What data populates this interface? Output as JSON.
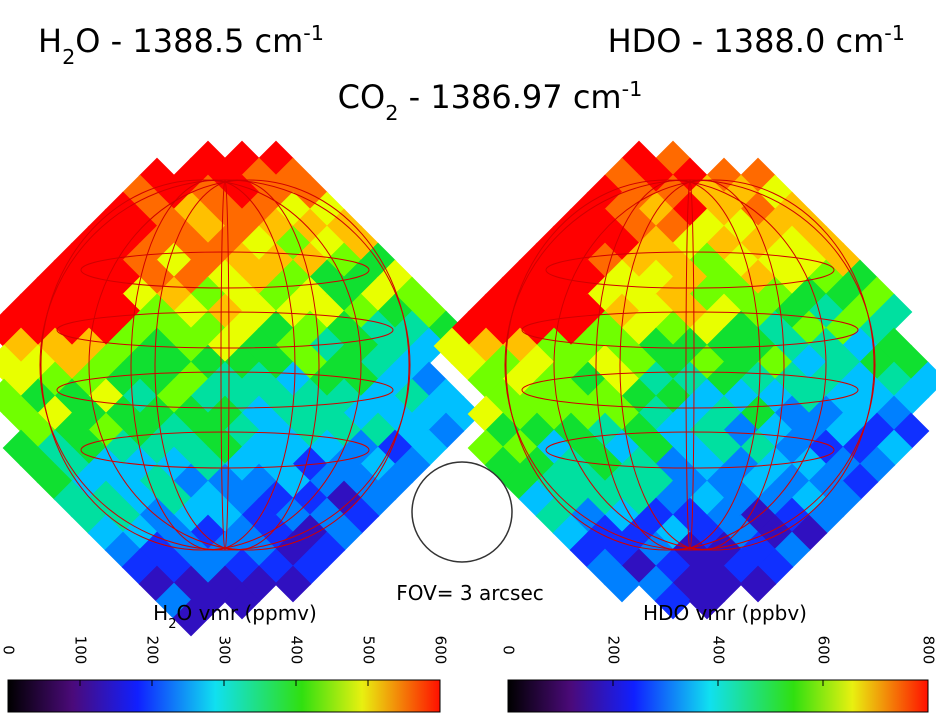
{
  "titles": [
    {
      "runs": [
        {
          "text": "H"
        },
        {
          "text": "2",
          "pos": "sub"
        },
        {
          "text": "O  - 1388.5 cm"
        },
        {
          "text": "-1",
          "pos": "sup"
        }
      ]
    },
    {
      "runs": [
        {
          "text": "HDO - 1388.0 cm"
        },
        {
          "text": "-1",
          "pos": "sup"
        }
      ]
    },
    {
      "runs": [
        {
          "text": "CO"
        },
        {
          "text": "2",
          "pos": "sub"
        },
        {
          "text": " - 1386.97 cm"
        },
        {
          "text": "-1",
          "pos": "sup"
        }
      ]
    }
  ],
  "fov_label": "FOV= 3 arcsec",
  "panels": [
    {
      "label_runs": [
        {
          "text": "H"
        },
        {
          "text": "2",
          "pos": "sub"
        },
        {
          "text": "O vmr (ppmv)"
        }
      ],
      "colorbar": {
        "lim": [
          0,
          600
        ],
        "ticks": [
          0,
          100,
          200,
          300,
          400,
          500,
          600
        ]
      }
    },
    {
      "label_runs": [
        {
          "text": "HDO vmr (ppbv)"
        }
      ],
      "colorbar": {
        "lim": [
          0,
          800
        ],
        "ticks": [
          0,
          200,
          400,
          600,
          800
        ]
      }
    }
  ]
}
